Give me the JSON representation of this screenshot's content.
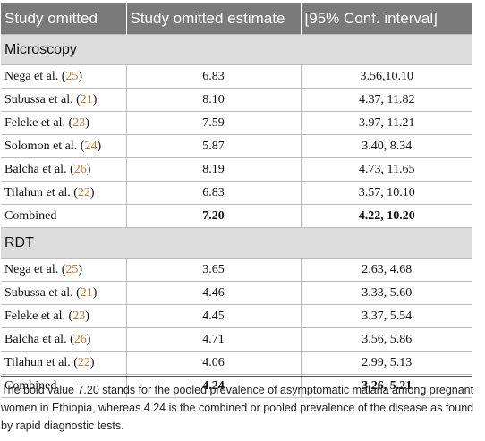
{
  "table": {
    "headers": [
      "Study omitted",
      "Study omitted estimate",
      "[95% Conf. interval]"
    ],
    "sections": [
      {
        "title": "Microscopy",
        "rows": [
          {
            "author": "Nega et al. (",
            "ref": "25",
            "close": ")",
            "estimate": "6.83",
            "ci": "3.56,10.10",
            "bold": false
          },
          {
            "author": "Subussa et al. (",
            "ref": "21",
            "close": ")",
            "estimate": "8.10",
            "ci": "4.37, 11.82",
            "bold": false
          },
          {
            "author": "Feleke et al. (",
            "ref": "23",
            "close": ")",
            "estimate": "7.59",
            "ci": "3.97, 11.21",
            "bold": false
          },
          {
            "author": "Solomon et al. (",
            "ref": "24",
            "close": ")",
            "estimate": "5.87",
            "ci": "3.40, 8.34",
            "bold": false
          },
          {
            "author": "Balcha et al. (",
            "ref": "26",
            "close": ")",
            "estimate": "8.19",
            "ci": "4.73, 11.65",
            "bold": false
          },
          {
            "author": "Tilahun et al. (",
            "ref": "22",
            "close": ")",
            "estimate": "6.83",
            "ci": "3.57, 10.10",
            "bold": false
          },
          {
            "author": "Combined",
            "ref": "",
            "close": "",
            "estimate": "7.20",
            "ci": "4.22, 10.20",
            "bold": true
          }
        ]
      },
      {
        "title": "RDT",
        "rows": [
          {
            "author": "Nega et al. (",
            "ref": "25",
            "close": ")",
            "estimate": "3.65",
            "ci": "2.63, 4.68",
            "bold": false
          },
          {
            "author": "Subussa et al. (",
            "ref": "21",
            "close": ")",
            "estimate": "4.46",
            "ci": "3.33, 5.60",
            "bold": false
          },
          {
            "author": "Feleke et al. (",
            "ref": "23",
            "close": ")",
            "estimate": "4.45",
            "ci": "3.37, 5.54",
            "bold": false
          },
          {
            "author": "Balcha et al. (",
            "ref": "26",
            "close": ")",
            "estimate": "4.71",
            "ci": "3.56, 5.86",
            "bold": false
          },
          {
            "author": "Tilahun et al. (",
            "ref": "22",
            "close": ")",
            "estimate": "4.06",
            "ci": "2.99, 5.13",
            "bold": false
          },
          {
            "author": "Combined",
            "ref": "",
            "close": "",
            "estimate": "4.24",
            "ci": "3.26, 5.21",
            "bold": true
          }
        ]
      }
    ]
  },
  "footnote": "The bold value 7.20 stands for the pooled prevalence of asymptomatic malaria among pregnant women in Ethiopia, whereas 4.24 is the combined or pooled prevalence of the disease as found by rapid diagnostic tests.",
  "colors": {
    "header_bg": "#7a7a7a",
    "section_bg": "#dcdcdc",
    "reference_link": "#c8762b"
  }
}
